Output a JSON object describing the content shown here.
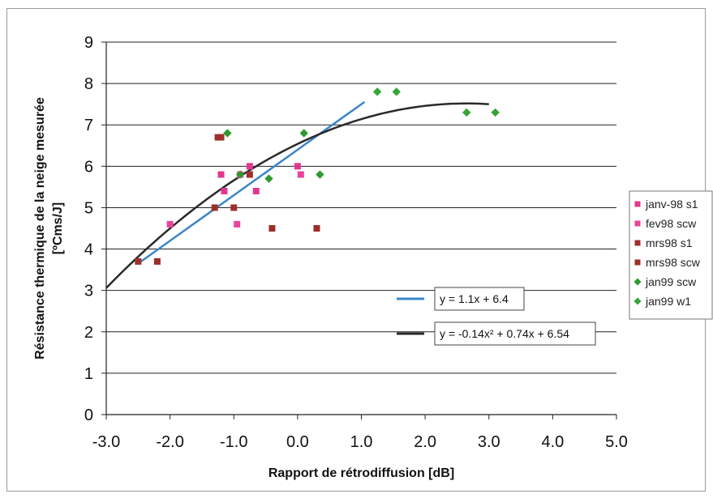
{
  "chart_data": {
    "type": "scatter",
    "title": "",
    "xlabel": "Rapport de rétrodiffusion [dB]",
    "ylabel": "Résistance thermique de la neige mesurée",
    "ylabel_unit": "[ºCms/J]",
    "xlim": [
      -3.0,
      5.0
    ],
    "ylim": [
      0,
      9
    ],
    "x_ticks": [
      "-3.0",
      "-2.0",
      "-1.0",
      "0.0",
      "1.0",
      "2.0",
      "3.0",
      "4.0",
      "5.0"
    ],
    "y_ticks": [
      "0",
      "1",
      "2",
      "3",
      "4",
      "5",
      "6",
      "7",
      "8",
      "9"
    ],
    "grid": "horizontal",
    "legend_position": "right",
    "series": [
      {
        "name": "janv-98 s1",
        "marker": "square",
        "color": "#e0388e",
        "points": [
          [
            -1.2,
            5.8
          ],
          [
            -1.15,
            5.4
          ],
          [
            -0.75,
            6.0
          ],
          [
            -0.65,
            5.4
          ],
          [
            0.0,
            6.0
          ]
        ]
      },
      {
        "name": "fev98 scw",
        "marker": "square",
        "color": "#e8449a",
        "points": [
          [
            -2.0,
            4.6
          ],
          [
            -0.95,
            4.6
          ],
          [
            -0.9,
            5.8
          ],
          [
            0.05,
            5.8
          ]
        ]
      },
      {
        "name": "mrs98 s1",
        "marker": "square",
        "color": "#a0302c",
        "points": [
          [
            -2.5,
            3.7
          ],
          [
            -1.25,
            6.7
          ],
          [
            -1.2,
            6.7
          ],
          [
            -1.0,
            5.0
          ],
          [
            -0.75,
            5.8
          ]
        ]
      },
      {
        "name": "mrs98 scw",
        "marker": "square",
        "color": "#9c2e2a",
        "points": [
          [
            -2.2,
            3.7
          ],
          [
            -1.3,
            5.0
          ],
          [
            -0.4,
            4.5
          ],
          [
            0.3,
            4.5
          ]
        ]
      },
      {
        "name": "jan99 scw",
        "marker": "diamond",
        "color": "#2e9a2e",
        "points": [
          [
            -1.1,
            6.8
          ],
          [
            -0.9,
            5.8
          ],
          [
            -0.45,
            5.7
          ],
          [
            0.1,
            6.8
          ],
          [
            0.35,
            5.8
          ]
        ]
      },
      {
        "name": "jan99 w1",
        "marker": "diamond",
        "color": "#35a535",
        "points": [
          [
            1.25,
            7.8
          ],
          [
            1.55,
            7.8
          ],
          [
            2.65,
            7.3
          ],
          [
            3.1,
            7.3
          ]
        ]
      }
    ],
    "trendlines": [
      {
        "type": "linear",
        "equation": "y = 1.1x + 6.4",
        "color": "#3b86c8",
        "x_range": [
          -2.5,
          1.05
        ],
        "coef": [
          6.4,
          1.1
        ]
      },
      {
        "type": "polynomial",
        "equation": "y = -0.14x² + 0.74x + 6.54",
        "color": "#2a2a2a",
        "x_range": [
          -3.0,
          3.0
        ],
        "coef": [
          6.54,
          0.74,
          -0.14
        ]
      }
    ]
  }
}
